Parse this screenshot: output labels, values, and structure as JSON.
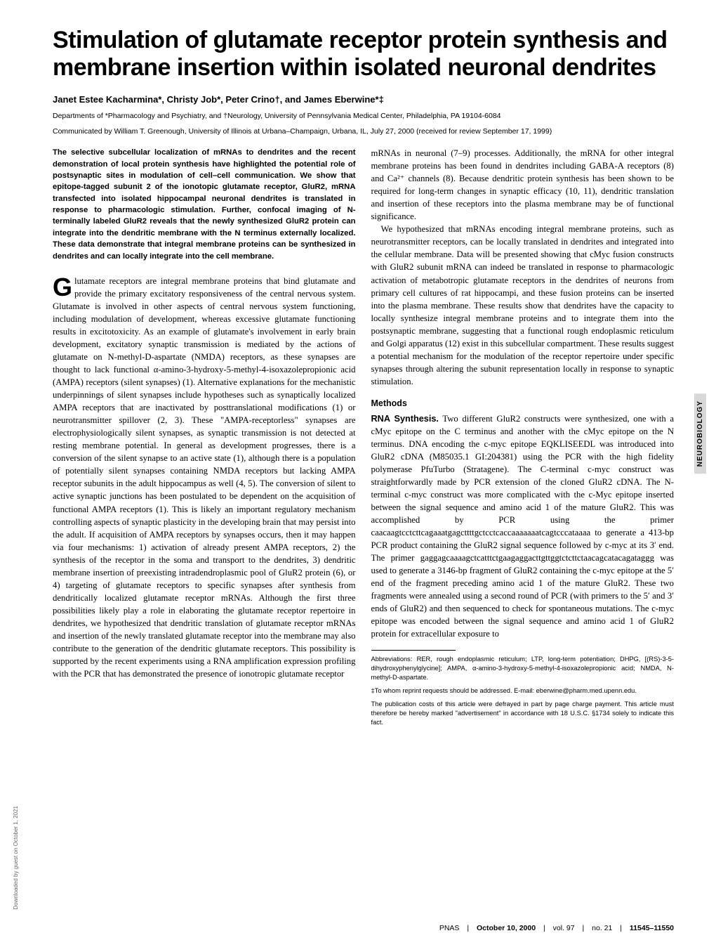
{
  "title": "Stimulation of glutamate receptor protein synthesis and membrane insertion within isolated neuronal dendrites",
  "authors": "Janet Estee Kacharmina*, Christy Job*, Peter Crino†, and James Eberwine*‡",
  "affiliations": "Departments of *Pharmacology and Psychiatry, and †Neurology, University of Pennsylvania Medical Center, Philadelphia, PA 19104-6084",
  "communicated": "Communicated by William T. Greenough, University of Illinois at Urbana–Champaign, Urbana, IL, July 27, 2000 (received for review September 17, 1999)",
  "abstract": "The selective subcellular localization of mRNAs to dendrites and the recent demonstration of local protein synthesis have highlighted the potential role of postsynaptic sites in modulation of cell–cell communication. We show that epitope-tagged subunit 2 of the ionotopic glutamate receptor, GluR2, mRNA transfected into isolated hippocampal neuronal dendrites is translated in response to pharmacologic stimulation. Further, confocal imaging of N-terminally labeled GluR2 reveals that the newly synthesized GluR2 protein can integrate into the dendritic membrane with the N terminus externally localized. These data demonstrate that integral membrane proteins can be synthesized in dendrites and can locally integrate into the cell membrane.",
  "col1": {
    "p1": "Glutamate receptors are integral membrane proteins that bind glutamate and provide the primary excitatory responsiveness of the central nervous system. Glutamate is involved in other aspects of central nervous system functioning, including modulation of development, whereas excessive glutamate functioning results in excitotoxicity. As an example of glutamate's involvement in early brain development, excitatory synaptic transmission is mediated by the actions of glutamate on N-methyl-D-aspartate (NMDA) receptors, as these synapses are thought to lack functional α-amino-3-hydroxy-5-methyl-4-isoxazolepropionic acid (AMPA) receptors (silent synapses) (1). Alternative explanations for the mechanistic underpinnings of silent synapses include hypotheses such as synaptically localized AMPA receptors that are inactivated by posttranslational modifications (1) or neurotransmitter spillover (2, 3). These \"AMPA-receptorless\" synapses are electrophysiologically silent synapses, as synaptic transmission is not detected at resting membrane potential. In general as development progresses, there is a conversion of the silent synapse to an active state (1), although there is a population of potentially silent synapses containing NMDA receptors but lacking AMPA receptor subunits in the adult hippocampus as well (4, 5). The conversion of silent to active synaptic junctions has been postulated to be dependent on the acquisition of functional AMPA receptors (1). This is likely an important regulatory mechanism controlling aspects of synaptic plasticity in the developing brain that may persist into the adult. If acquisition of AMPA receptors by synapses occurs, then it may happen via four mechanisms: 1) activation of already present AMPA receptors, 2) the synthesis of the receptor in the soma and transport to the dendrites, 3) dendritic membrane insertion of preexisting intradendroplasmic pool of GluR2 protein (6), or 4) targeting of glutamate receptors to specific synapses after synthesis from dendritically localized glutamate receptor mRNAs. Although the first three possibilities likely play a role in elaborating the glutamate receptor repertoire in dendrites, we hypothesized that dendritic translation of glutamate receptor mRNAs and insertion of the newly translated glutamate receptor into the membrane may also contribute to the generation of the dendritic glutamate receptors. This possibility is supported by the recent experiments using a RNA amplification expression profiling with the PCR that has demonstrated the presence of ionotropic glutamate receptor"
  },
  "col2": {
    "p1": "mRNAs in neuronal (7–9) processes. Additionally, the mRNA for other integral membrane proteins has been found in dendrites including GABA-A receptors (8) and Ca²⁺ channels (8). Because dendritic protein synthesis has been shown to be required for long-term changes in synaptic efficacy (10, 11), dendritic translation and insertion of these receptors into the plasma membrane may be of functional significance.",
    "p2": "We hypothesized that mRNAs encoding integral membrane proteins, such as neurotransmitter receptors, can be locally translated in dendrites and integrated into the cellular membrane. Data will be presented showing that cMyc fusion constructs with GluR2 subunit mRNA can indeed be translated in response to pharmacologic activation of metabotropic glutamate receptors in the dendrites of neurons from primary cell cultures of rat hippocampi, and these fusion proteins can be inserted into the plasma membrane. These results show that dendrites have the capacity to locally synthesize integral membrane proteins and to integrate them into the postsynaptic membrane, suggesting that a functional rough endoplasmic reticulum and Golgi apparatus (12) exist in this subcellular compartment. These results suggest a potential mechanism for the modulation of the receptor repertoire under specific synapses through altering the subunit representation locally in response to synaptic stimulation.",
    "methods_heading": "Methods",
    "rna_runin": "RNA Synthesis.",
    "p3": " Two different GluR2 constructs were synthesized, one with a cMyc epitope on the C terminus and another with the cMyc epitope on the N terminus. DNA encoding the c-myc epitope EQKLISEEDL was introduced into GluR2 cDNA (M85035.1 GI:204381) using the PCR with the high fidelity polymerase PfuTurbo (Stratagene). The C-terminal c-myc construct was straightforwardly made by PCR extension of the cloned GluR2 cDNA. The N-terminal c-myc construct was more complicated with the c-Myc epitope inserted between the signal sequence and amino acid 1 of the mature GluR2. This was accomplished by PCR using the primer caacaagtcctcttcagaaatgagcttttgctcctcaccaaaaaaatcagtcccataaaa to generate a 413-bp PCR product containing the GluR2 signal sequence followed by c-myc at its 3′ end. The primer gaggagcaaaagctcatttctgaagaggacttgttggtctcttctaacagcatacagataggg was used to generate a 3146-bp fragment of GluR2 containing the c-myc epitope at the 5′ end of the fragment preceding amino acid 1 of the mature GluR2. These two fragments were annealed using a second round of PCR (with primers to the 5′ and 3′ ends of GluR2) and then sequenced to check for spontaneous mutations. The c-myc epitope was encoded between the signal sequence and amino acid 1 of GluR2 protein for extracellular exposure to"
  },
  "footnotes": {
    "abbrev": "Abbreviations: RER, rough endoplasmic reticulum; LTP, long-term potentiation; DHPG, [(RS)-3-5-dihydroxyphenylglycine]; AMPA, α-amino-3-hydroxy-5-methyl-4-isoxazolepropionic acid; NMDA, N-methyl-D-aspartate.",
    "reprint": "‡To whom reprint requests should be addressed. E-mail: eberwine@pharm.med.upenn.edu.",
    "charges": "The publication costs of this article were defrayed in part by page charge payment. This article must therefore be hereby marked \"advertisement\" in accordance with 18 U.S.C. §1734 solely to indicate this fact."
  },
  "sidetab": "NEUROBIOLOGY",
  "left_vertical": "Downloaded by guest on October 1, 2021",
  "footer": {
    "pnas": "PNAS",
    "date": "October 10, 2000",
    "vol": "vol. 97",
    "no": "no. 21",
    "pages": "11545–11550"
  }
}
